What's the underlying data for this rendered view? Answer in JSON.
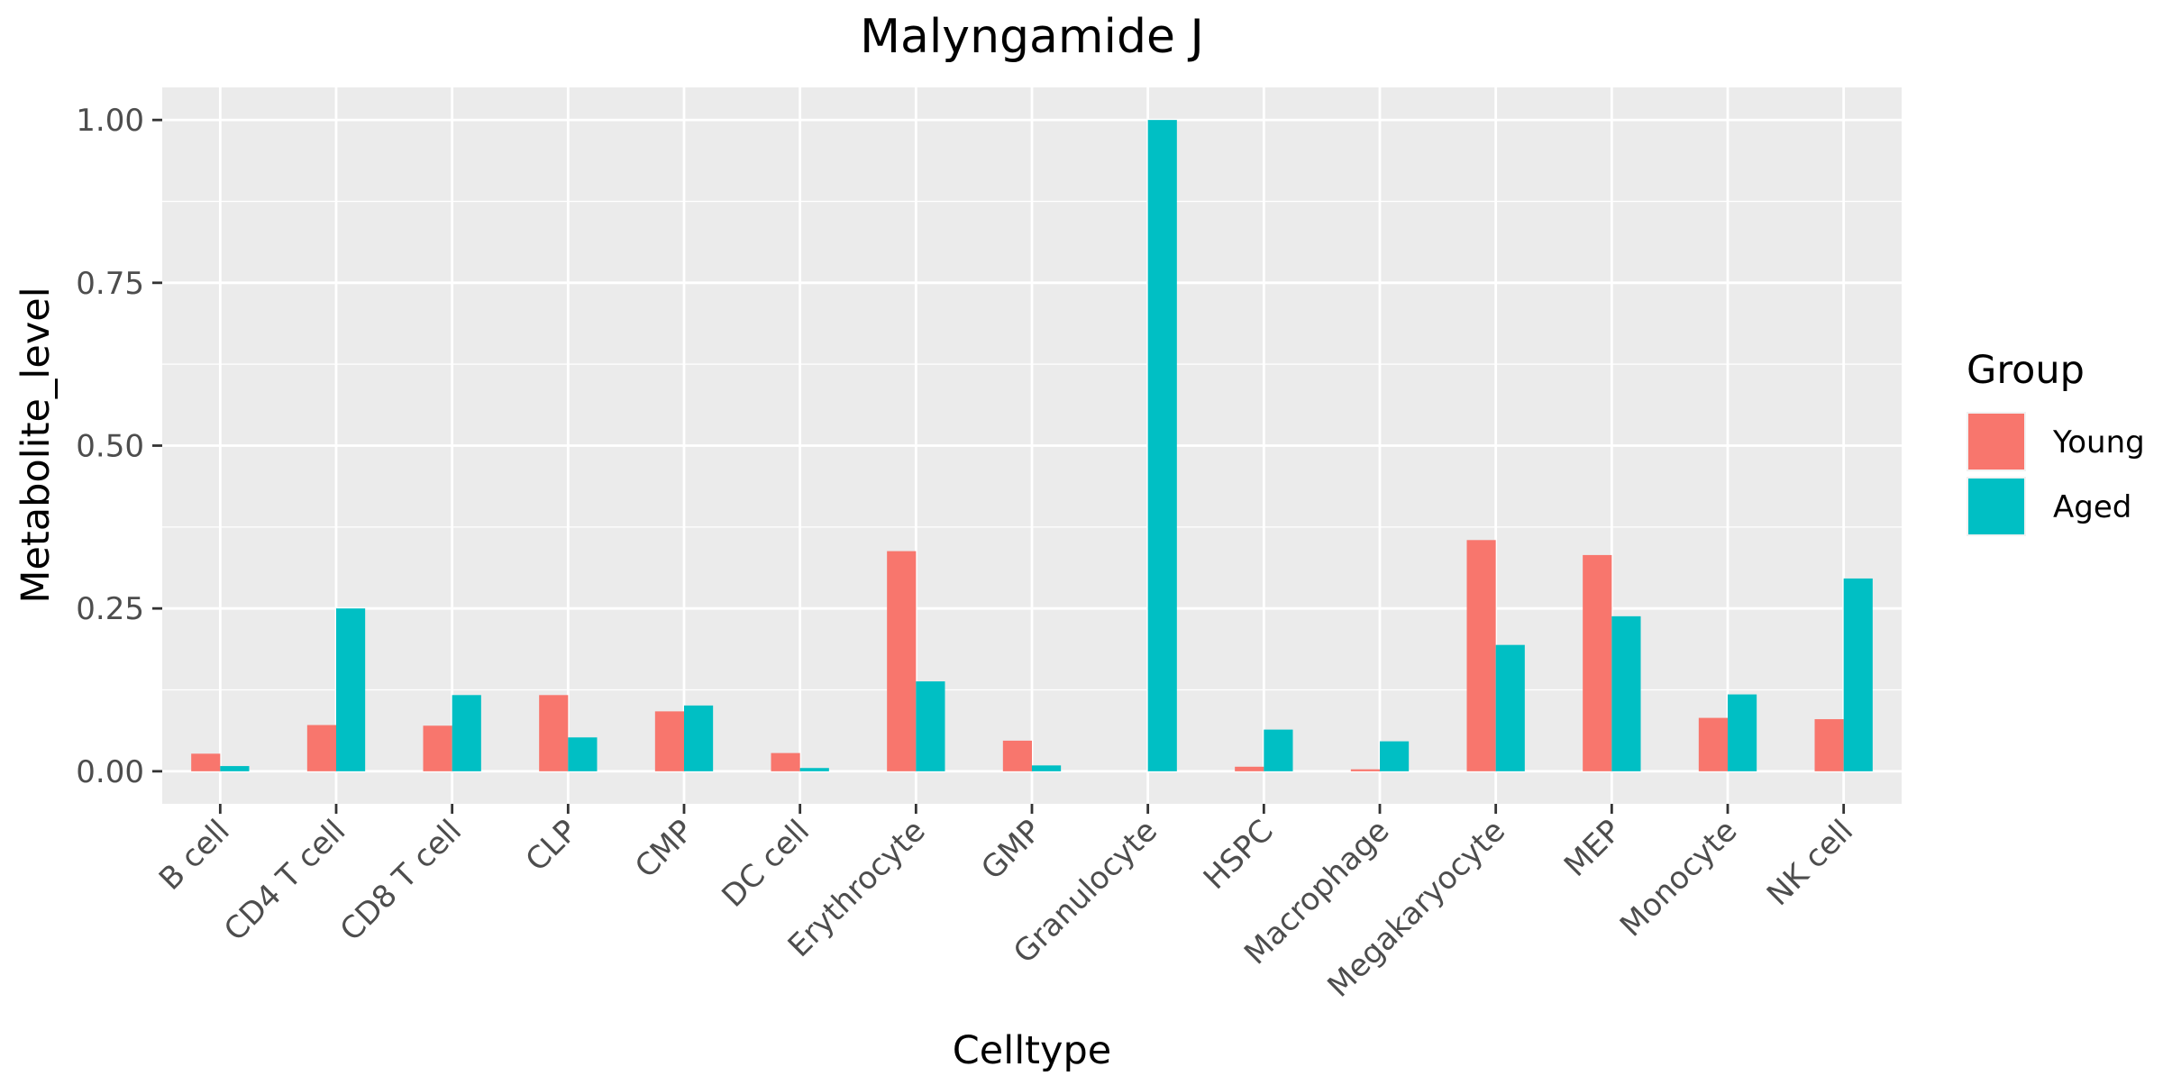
{
  "chart_data": {
    "type": "bar",
    "title": "Malyngamide J",
    "xlabel": "Celltype",
    "ylabel": "Metabolite_level",
    "ylim": [
      -0.05,
      1.05
    ],
    "yticks": [
      0.0,
      0.25,
      0.5,
      0.75,
      1.0
    ],
    "ytick_labels": [
      "0.00",
      "0.25",
      "0.50",
      "0.75",
      "1.00"
    ],
    "grid": true,
    "legend": {
      "title": "Group",
      "placement": "right"
    },
    "categories": [
      "B cell",
      "CD4 T cell",
      "CD8 T cell",
      "CLP",
      "CMP",
      "DC cell",
      "Erythrocyte",
      "GMP",
      "Granulocyte",
      "HSPC",
      "Macrophage",
      "Megakaryocyte",
      "MEP",
      "Monocyte",
      "NK cell"
    ],
    "series": [
      {
        "name": "Young",
        "color": "#F8766D",
        "values": [
          0.027,
          0.071,
          0.07,
          0.117,
          0.092,
          0.028,
          0.338,
          0.047,
          0.0,
          0.007,
          0.003,
          0.355,
          0.332,
          0.082,
          0.08
        ]
      },
      {
        "name": "Aged",
        "color": "#00BFC4",
        "values": [
          0.008,
          0.25,
          0.117,
          0.052,
          0.101,
          0.005,
          0.138,
          0.009,
          1.0,
          0.064,
          0.046,
          0.194,
          0.238,
          0.118,
          0.296
        ]
      }
    ]
  }
}
